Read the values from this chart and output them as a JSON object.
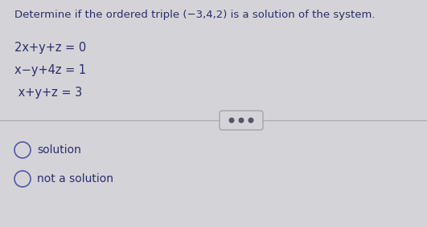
{
  "title": "Determine if the ordered triple (−3,4,2) is a solution of the system.",
  "equations": [
    "2x+y+z = 0",
    "x−y+4z = 1",
    " x+y+z = 3"
  ],
  "options": [
    "solution",
    "not a solution"
  ],
  "bg_color": "#d4d4d8",
  "text_color": "#2c2c6e",
  "divider_color": "#aaaaaa",
  "title_fontsize": 9.5,
  "eq_fontsize": 10.5,
  "option_fontsize": 10,
  "circle_color": "#5555aa"
}
